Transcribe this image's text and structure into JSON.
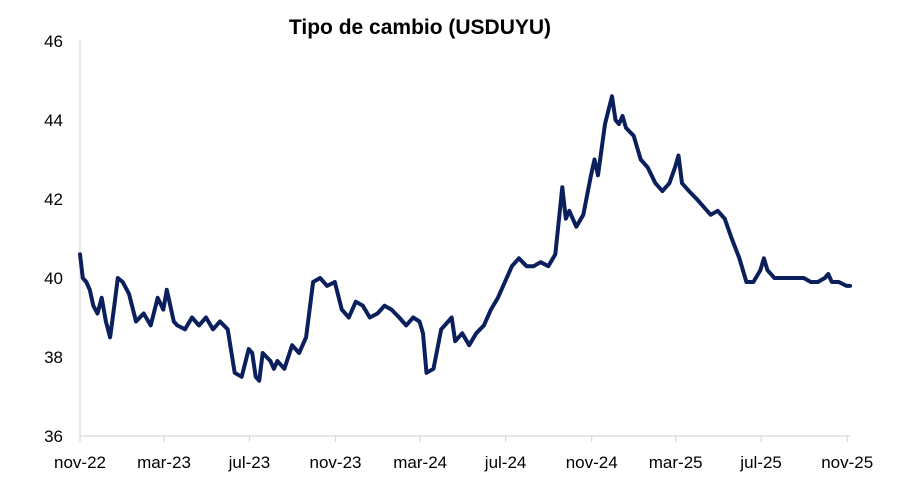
{
  "chart_data": {
    "type": "line",
    "title": "Tipo de cambio (USDUYU)",
    "xlabel": "",
    "ylabel": "",
    "ylim": [
      36,
      46
    ],
    "y_ticks": [
      "36",
      "38",
      "40",
      "42",
      "44",
      "46"
    ],
    "x_ticks": [
      "nov-22",
      "mar-23",
      "jul-23",
      "nov-23",
      "mar-24",
      "jul-24",
      "nov-24",
      "mar-25",
      "jul-25",
      "nov-25"
    ],
    "grid": false,
    "legend": "none",
    "line_color": "#0a1f5c",
    "series": [
      {
        "name": "",
        "x": [
          "2022-11-01",
          "2022-11-05",
          "2022-11-10",
          "2022-11-15",
          "2022-11-20",
          "2022-11-26",
          "2022-12-02",
          "2022-12-08",
          "2022-12-14",
          "2022-12-20",
          "2022-12-25",
          "2023-01-01",
          "2023-01-10",
          "2023-01-20",
          "2023-01-31",
          "2023-02-10",
          "2023-02-20",
          "2023-02-28",
          "2023-03-05",
          "2023-03-15",
          "2023-03-20",
          "2023-03-31",
          "2023-04-10",
          "2023-04-15",
          "2023-04-20",
          "2023-04-30",
          "2023-05-10",
          "2023-05-20",
          "2023-05-31",
          "2023-06-10",
          "2023-06-20",
          "2023-06-30",
          "2023-07-05",
          "2023-07-10",
          "2023-07-15",
          "2023-07-20",
          "2023-07-31",
          "2023-08-05",
          "2023-08-10",
          "2023-08-15",
          "2023-08-20",
          "2023-08-31",
          "2023-09-10",
          "2023-09-20",
          "2023-09-30",
          "2023-10-10",
          "2023-10-20",
          "2023-10-31",
          "2023-11-10",
          "2023-11-20",
          "2023-11-30",
          "2023-12-10",
          "2023-12-20",
          "2023-12-31",
          "2024-01-10",
          "2024-01-20",
          "2024-01-31",
          "2024-02-10",
          "2024-02-20",
          "2024-02-29",
          "2024-03-05",
          "2024-03-10",
          "2024-03-20",
          "2024-03-31",
          "2024-04-10",
          "2024-04-15",
          "2024-04-20",
          "2024-04-30",
          "2024-05-10",
          "2024-05-20",
          "2024-05-31",
          "2024-06-10",
          "2024-06-20",
          "2024-06-30",
          "2024-07-10",
          "2024-07-20",
          "2024-07-31",
          "2024-08-10",
          "2024-08-20",
          "2024-08-31",
          "2024-09-10",
          "2024-09-20",
          "2024-09-25",
          "2024-09-30",
          "2024-10-10",
          "2024-10-20",
          "2024-10-31",
          "2024-11-05",
          "2024-11-10",
          "2024-11-20",
          "2024-11-30",
          "2024-12-05",
          "2024-12-10",
          "2024-12-15",
          "2024-12-20",
          "2024-12-31",
          "2025-01-10",
          "2025-01-20",
          "2025-01-31",
          "2025-02-10",
          "2025-02-20",
          "2025-02-28",
          "2025-03-05",
          "2025-03-10",
          "2025-03-20",
          "2025-03-31",
          "2025-04-10",
          "2025-04-20",
          "2025-04-30",
          "2025-05-10",
          "2025-05-20",
          "2025-05-31",
          "2025-06-10",
          "2025-06-20",
          "2025-06-30",
          "2025-07-05",
          "2025-07-10",
          "2025-07-20",
          "2025-07-31",
          "2025-08-10",
          "2025-08-20",
          "2025-08-31",
          "2025-09-10",
          "2025-09-20",
          "2025-09-30",
          "2025-10-05",
          "2025-10-10",
          "2025-10-20",
          "2025-10-31",
          "2025-11-05"
        ],
        "values": [
          40.6,
          40.0,
          39.9,
          39.7,
          39.3,
          39.1,
          39.5,
          38.9,
          38.5,
          39.3,
          40.0,
          39.9,
          39.6,
          38.9,
          39.1,
          38.8,
          39.5,
          39.2,
          39.7,
          38.9,
          38.8,
          38.7,
          39.0,
          38.9,
          38.8,
          39.0,
          38.7,
          38.9,
          38.7,
          37.6,
          37.5,
          38.2,
          38.1,
          37.5,
          37.4,
          38.1,
          37.9,
          37.7,
          37.9,
          37.8,
          37.7,
          38.3,
          38.1,
          38.5,
          39.9,
          40.0,
          39.8,
          39.9,
          39.2,
          39.0,
          39.4,
          39.3,
          39.0,
          39.1,
          39.3,
          39.2,
          39.0,
          38.8,
          39.0,
          38.9,
          38.6,
          37.6,
          37.7,
          38.7,
          38.9,
          39.0,
          38.4,
          38.6,
          38.3,
          38.6,
          38.8,
          39.2,
          39.5,
          39.9,
          40.3,
          40.5,
          40.3,
          40.3,
          40.4,
          40.3,
          40.6,
          42.3,
          41.5,
          41.7,
          41.3,
          41.6,
          42.6,
          43.0,
          42.6,
          43.9,
          44.6,
          44.0,
          43.9,
          44.1,
          43.8,
          43.6,
          43.0,
          42.8,
          42.4,
          42.2,
          42.4,
          42.8,
          43.1,
          42.4,
          42.2,
          42.0,
          41.8,
          41.6,
          41.7,
          41.5,
          41.0,
          40.5,
          39.9,
          39.9,
          40.2,
          40.5,
          40.2,
          40.0,
          40.0,
          40.0,
          40.0,
          40.0,
          39.9,
          39.9,
          40.0,
          40.1,
          39.9,
          39.9,
          39.8,
          39.8
        ]
      }
    ]
  }
}
